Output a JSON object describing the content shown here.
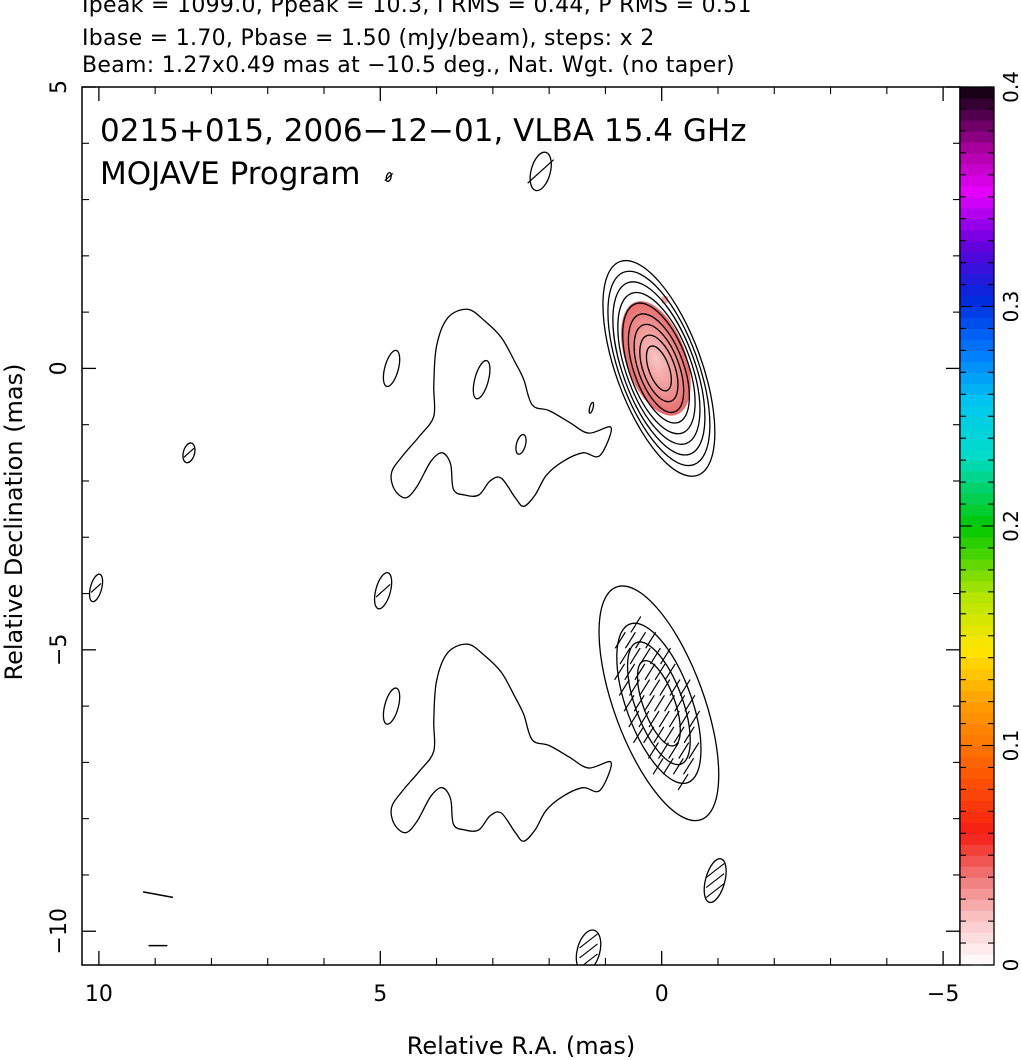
{
  "header": {
    "line1": "Ipeak = 1099.0, Ppeak = 10.3, I RMS = 0.44, P RMS = 0.51",
    "line2": "Ibase = 1.70, Pbase = 1.50 (mJy/beam), steps: x 2",
    "line3": "Beam: 1.27x0.49 mas at −10.5 deg., Nat. Wgt. (no taper)"
  },
  "chart_data": {
    "type": "contour",
    "title": "0215+015, 2006−12−01, VLBA 15.4 GHz",
    "subtitle": "MOJAVE Program",
    "xlabel": "Relative R.A. (mas)",
    "ylabel": "Relative Declination (mas)",
    "xlim": [
      10.3,
      -5.3
    ],
    "ylim": [
      -10.6,
      5
    ],
    "x_ticks": [
      10,
      5,
      0,
      -5
    ],
    "x_tick_labels": [
      "10",
      "5",
      "0",
      "−5"
    ],
    "y_ticks": [
      5,
      0,
      -5,
      -10
    ],
    "y_tick_labels": [
      "5",
      "0",
      "−5",
      "−10"
    ],
    "colorbar": {
      "min": 0,
      "max": 0.4,
      "ticks": [
        0,
        0.1,
        0.2,
        0.3,
        0.4
      ],
      "tick_labels": [
        "0",
        "0.1",
        "0.2",
        "0.3",
        "0.4"
      ]
    },
    "stokes_i_map": {
      "core_center": [
        0.05,
        0.0
      ],
      "contour_semi_axes": [
        [
          0.18,
          0.42
        ],
        [
          0.28,
          0.62
        ],
        [
          0.36,
          0.82
        ],
        [
          0.44,
          1.02
        ],
        [
          0.52,
          1.22
        ],
        [
          0.58,
          1.42
        ],
        [
          0.64,
          1.62
        ],
        [
          0.7,
          1.82
        ],
        [
          0.76,
          2.02
        ]
      ],
      "jet_outline": [
        [
          0.9,
          -1.05
        ],
        [
          1.3,
          -1.15
        ],
        [
          1.65,
          -0.95
        ],
        [
          2.0,
          -0.75
        ],
        [
          2.3,
          -0.65
        ],
        [
          2.45,
          -0.2
        ],
        [
          2.6,
          0.1
        ],
        [
          2.85,
          0.55
        ],
        [
          3.15,
          0.85
        ],
        [
          3.45,
          1.05
        ],
        [
          3.8,
          0.9
        ],
        [
          4.0,
          0.4
        ],
        [
          4.05,
          -0.3
        ],
        [
          4.05,
          -0.85
        ],
        [
          4.3,
          -1.2
        ],
        [
          4.6,
          -1.55
        ],
        [
          4.8,
          -1.85
        ],
        [
          4.75,
          -2.15
        ],
        [
          4.55,
          -2.3
        ],
        [
          4.35,
          -2.1
        ],
        [
          4.1,
          -1.65
        ],
        [
          3.9,
          -1.5
        ],
        [
          3.75,
          -1.7
        ],
        [
          3.7,
          -2.15
        ],
        [
          3.5,
          -2.25
        ],
        [
          3.25,
          -2.25
        ],
        [
          3.05,
          -2.0
        ],
        [
          2.85,
          -1.95
        ],
        [
          2.6,
          -2.3
        ],
        [
          2.45,
          -2.45
        ],
        [
          2.25,
          -2.25
        ],
        [
          2.05,
          -1.9
        ],
        [
          1.75,
          -1.65
        ],
        [
          1.4,
          -1.5
        ],
        [
          1.1,
          -1.55
        ]
      ],
      "islands": [
        {
          "x": 3.2,
          "y": -0.2,
          "rx": 0.12,
          "ry": 0.35
        },
        {
          "x": 4.8,
          "y": 0.0,
          "rx": 0.12,
          "ry": 0.33
        },
        {
          "x": 2.5,
          "y": -1.35,
          "rx": 0.08,
          "ry": 0.18
        },
        {
          "x": 1.25,
          "y": -0.7,
          "rx": 0.03,
          "ry": 0.1
        },
        {
          "x": 8.4,
          "y": -1.5,
          "rx": 0.1,
          "ry": 0.18
        },
        {
          "x": 2.15,
          "y": 3.5,
          "rx": 0.17,
          "ry": 0.35
        },
        {
          "x": 4.85,
          "y": 3.4,
          "rx": 0.04,
          "ry": 0.08
        },
        {
          "x": 4.95,
          "y": -3.95,
          "rx": 0.13,
          "ry": 0.33
        },
        {
          "x": 10.05,
          "y": -3.9,
          "rx": 0.1,
          "ry": 0.25
        }
      ]
    },
    "polarization_map": {
      "center": [
        0.05,
        -5.95
      ],
      "contour_semi_axes": [
        [
          0.28,
          0.8
        ],
        [
          0.42,
          1.15
        ],
        [
          0.58,
          1.5
        ],
        [
          0.8,
          2.2
        ]
      ],
      "jet_offset": [
        0,
        -5.95
      ],
      "islands": [
        {
          "x": 4.8,
          "y": -6.0,
          "rx": 0.12,
          "ry": 0.33
        },
        {
          "x": -0.95,
          "y": -9.1,
          "rx": 0.17,
          "ry": 0.4
        },
        {
          "x": 1.3,
          "y": -10.35,
          "rx": 0.2,
          "ry": 0.38
        }
      ]
    },
    "beam": {
      "x": 8.95,
      "y": -9.35,
      "major": 1.27,
      "minor": 0.49,
      "pa_deg": -10.5
    }
  }
}
